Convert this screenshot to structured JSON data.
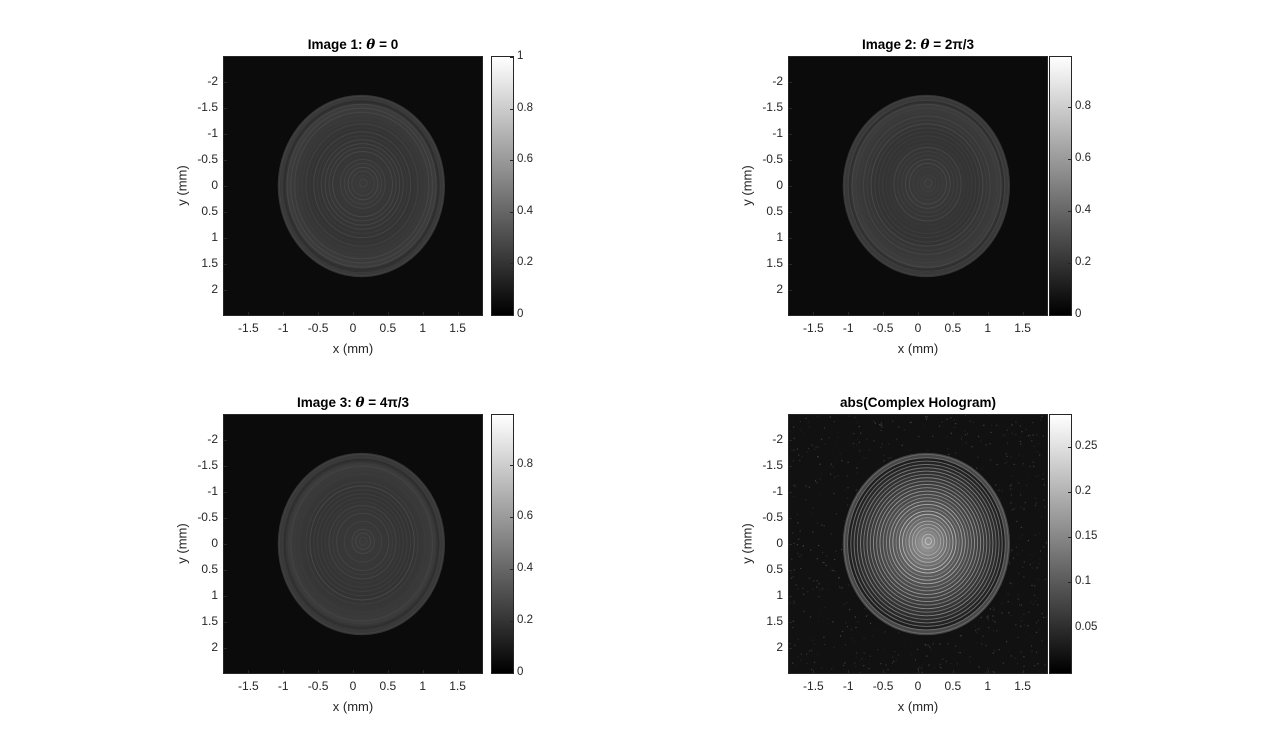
{
  "figure": {
    "panels": [
      {
        "title_prefix": "Image 1: ",
        "theta": "θ",
        "title_suffix": " = 0",
        "xlabel": "x (mm)",
        "ylabel": "y (mm)",
        "colorbar_ticks": [
          "1",
          "0.8",
          "0.6",
          "0.4",
          "0.2",
          "0"
        ],
        "colorbar_values": [
          1,
          0.8,
          0.6,
          0.4,
          0.2,
          0
        ],
        "colorbar_range": [
          0,
          1
        ],
        "variant": "intensity"
      },
      {
        "title_prefix": "Image 2: ",
        "theta": "θ",
        "title_suffix": " = 2π/3",
        "xlabel": "x (mm)",
        "ylabel": "y (mm)",
        "colorbar_ticks": [
          "0.8",
          "0.6",
          "0.4",
          "0.2",
          "0"
        ],
        "colorbar_values": [
          0.8,
          0.6,
          0.4,
          0.2,
          0
        ],
        "colorbar_range": [
          0,
          0.99
        ],
        "variant": "intensity"
      },
      {
        "title_prefix": "Image 3: ",
        "theta": "θ",
        "title_suffix": " = 4π/3",
        "xlabel": "x (mm)",
        "ylabel": "y (mm)",
        "colorbar_ticks": [
          "0.8",
          "0.6",
          "0.4",
          "0.2",
          "0"
        ],
        "colorbar_values": [
          0.8,
          0.6,
          0.4,
          0.2,
          0
        ],
        "colorbar_range": [
          0,
          0.99
        ],
        "variant": "intensity"
      },
      {
        "title_prefix": "abs(Complex Hologram)",
        "theta": "",
        "title_suffix": "",
        "xlabel": "x (mm)",
        "ylabel": "y (mm)",
        "colorbar_ticks": [
          "0.25",
          "0.2",
          "0.15",
          "0.1",
          "0.05"
        ],
        "colorbar_values": [
          0.25,
          0.2,
          0.15,
          0.1,
          0.05
        ],
        "colorbar_range": [
          0,
          0.285
        ],
        "variant": "hologram"
      }
    ]
  },
  "chart_data": [
    {
      "type": "heatmap",
      "title": "Image 1: θ = 0",
      "xlabel": "x (mm)",
      "ylabel": "y (mm)",
      "x_ticks": [
        "-1.5",
        "-1",
        "-0.5",
        "0",
        "0.5",
        "1",
        "1.5"
      ],
      "x_tick_values": [
        -1.5,
        -1,
        -0.5,
        0,
        0.5,
        1,
        1.5
      ],
      "y_ticks": [
        "-2",
        "-1.5",
        "-1",
        "-0.5",
        "0",
        "0.5",
        "1",
        "1.5",
        "2"
      ],
      "y_tick_values": [
        -2,
        -1.5,
        -1,
        -0.5,
        0,
        0.5,
        1,
        1.5,
        2
      ],
      "xlim": [
        -1.85,
        1.85
      ],
      "ylim": [
        -2.47,
        2.47
      ],
      "y_reversed": true,
      "colormap": "gray",
      "clim": [
        0,
        1
      ],
      "pattern": "concentric rings centered near (0.1, 0), radius about 1.15 mm"
    },
    {
      "type": "heatmap",
      "title": "Image 2: θ = 2π/3",
      "xlabel": "x (mm)",
      "ylabel": "y (mm)",
      "x_ticks": [
        "-1.5",
        "-1",
        "-0.5",
        "0",
        "0.5",
        "1",
        "1.5"
      ],
      "x_tick_values": [
        -1.5,
        -1,
        -0.5,
        0,
        0.5,
        1,
        1.5
      ],
      "y_ticks": [
        "-2",
        "-1.5",
        "-1",
        "-0.5",
        "0",
        "0.5",
        "1",
        "1.5",
        "2"
      ],
      "y_tick_values": [
        -2,
        -1.5,
        -1,
        -0.5,
        0,
        0.5,
        1,
        1.5,
        2
      ],
      "xlim": [
        -1.85,
        1.85
      ],
      "ylim": [
        -2.47,
        2.47
      ],
      "y_reversed": true,
      "colormap": "gray",
      "clim": [
        0,
        0.99
      ],
      "pattern": "concentric rings centered near (0.1, 0), radius about 1.15 mm"
    },
    {
      "type": "heatmap",
      "title": "Image 3: θ = 4π/3",
      "xlabel": "x (mm)",
      "ylabel": "y (mm)",
      "x_ticks": [
        "-1.5",
        "-1",
        "-0.5",
        "0",
        "0.5",
        "1",
        "1.5"
      ],
      "x_tick_values": [
        -1.5,
        -1,
        -0.5,
        0,
        0.5,
        1,
        1.5
      ],
      "y_ticks": [
        "-2",
        "-1.5",
        "-1",
        "-0.5",
        "0",
        "0.5",
        "1",
        "1.5",
        "2"
      ],
      "y_tick_values": [
        -2,
        -1.5,
        -1,
        -0.5,
        0,
        0.5,
        1,
        1.5,
        2
      ],
      "xlim": [
        -1.85,
        1.85
      ],
      "ylim": [
        -2.47,
        2.47
      ],
      "y_reversed": true,
      "colormap": "gray",
      "clim": [
        0,
        0.99
      ],
      "pattern": "concentric rings centered near (0.1, 0), radius about 1.15 mm"
    },
    {
      "type": "heatmap",
      "title": "abs(Complex Hologram)",
      "xlabel": "x (mm)",
      "ylabel": "y (mm)",
      "x_ticks": [
        "-1.5",
        "-1",
        "-0.5",
        "0",
        "0.5",
        "1",
        "1.5"
      ],
      "x_tick_values": [
        -1.5,
        -1,
        -0.5,
        0,
        0.5,
        1,
        1.5
      ],
      "y_ticks": [
        "-2",
        "-1.5",
        "-1",
        "-0.5",
        "0",
        "0.5",
        "1",
        "1.5",
        "2"
      ],
      "y_tick_values": [
        -2,
        -1.5,
        -1,
        -0.5,
        0,
        0.5,
        1,
        1.5,
        2
      ],
      "xlim": [
        -1.85,
        1.85
      ],
      "ylim": [
        -2.47,
        2.47
      ],
      "y_reversed": true,
      "colormap": "gray",
      "clim": [
        0,
        0.285
      ],
      "pattern": "bright concentric fringes with speckle noise centered near (0.1, 0)"
    }
  ]
}
